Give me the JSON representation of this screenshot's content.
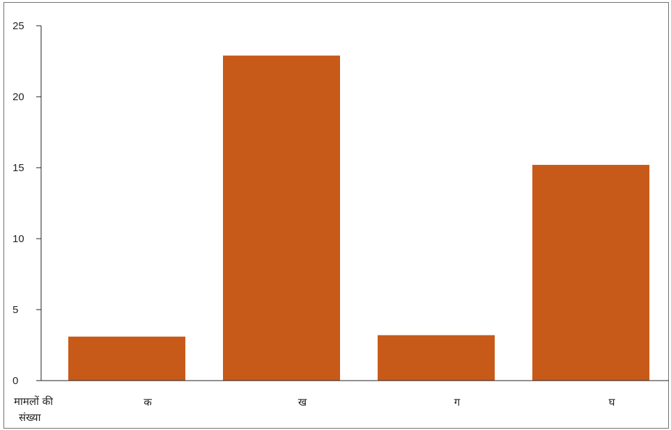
{
  "chart_data": {
    "type": "bar",
    "categories": [
      "क",
      "ख",
      "ग",
      "घ"
    ],
    "values": [
      3.1,
      22.9,
      3.2,
      15.2
    ],
    "ylabel_lines": [
      "मामलों की",
      "संख्या"
    ],
    "xlabel": "",
    "ylim": [
      0,
      25
    ],
    "yticks": [
      0,
      5,
      10,
      15,
      20,
      25
    ],
    "bar_color": "#c85a19",
    "axis_color": "#231f20",
    "grid": false,
    "legend": "none"
  }
}
